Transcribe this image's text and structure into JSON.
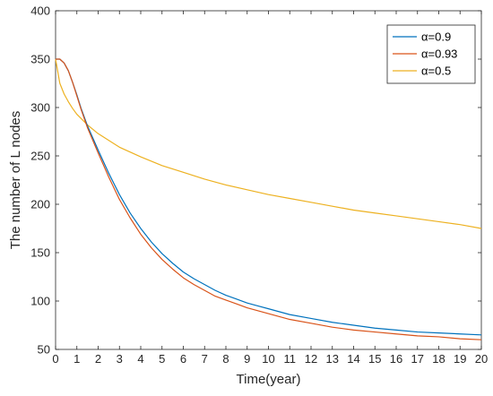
{
  "chart_data": {
    "type": "line",
    "title": "",
    "xlabel": "Time(year)",
    "ylabel": "The number of L nodes",
    "xlim": [
      0,
      20
    ],
    "ylim": [
      50,
      400
    ],
    "xticks": [
      0,
      1,
      2,
      3,
      4,
      5,
      6,
      7,
      8,
      9,
      10,
      11,
      12,
      13,
      14,
      15,
      16,
      17,
      18,
      19,
      20
    ],
    "yticks": [
      50,
      100,
      150,
      200,
      250,
      300,
      350,
      400
    ],
    "grid": false,
    "legend_position": "top-right",
    "series": [
      {
        "name": "α=0.9",
        "color": "#0072BD",
        "x": [
          0,
          0.2,
          0.4,
          0.6,
          0.8,
          1,
          1.2,
          1.5,
          2,
          2.5,
          3,
          3.5,
          4,
          4.5,
          5,
          5.5,
          6,
          6.5,
          7,
          7.5,
          8,
          8.5,
          9,
          9.5,
          10,
          11,
          12,
          13,
          14,
          15,
          16,
          17,
          18,
          19,
          20
        ],
        "values": [
          350,
          350,
          346,
          338,
          326,
          313,
          299,
          281,
          256,
          232,
          210,
          191,
          175,
          161,
          149,
          139,
          130,
          123,
          117,
          111,
          106,
          102,
          98,
          95,
          92,
          86,
          82,
          78,
          75,
          72,
          70,
          68,
          67,
          66,
          65
        ]
      },
      {
        "name": "α=0.93",
        "color": "#D95319",
        "x": [
          0,
          0.2,
          0.4,
          0.6,
          0.8,
          1,
          1.2,
          1.5,
          2,
          2.5,
          3,
          3.5,
          4,
          4.5,
          5,
          5.5,
          6,
          6.5,
          7,
          7.5,
          8,
          8.5,
          9,
          9.5,
          10,
          11,
          12,
          13,
          14,
          15,
          16,
          17,
          18,
          19,
          20
        ],
        "values": [
          350,
          350,
          346,
          338,
          326,
          312,
          298,
          279,
          253,
          228,
          205,
          186,
          169,
          155,
          143,
          133,
          124,
          117,
          111,
          105,
          101,
          97,
          93,
          90,
          87,
          81,
          77,
          73,
          70,
          68,
          66,
          64,
          63,
          61,
          60
        ]
      },
      {
        "name": "α=0.5",
        "color": "#EDB120",
        "x": [
          0,
          0.2,
          0.4,
          0.6,
          0.8,
          1,
          1.5,
          2,
          3,
          4,
          5,
          6,
          7,
          8,
          9,
          10,
          11,
          12,
          13,
          14,
          15,
          16,
          17,
          18,
          19,
          20
        ],
        "values": [
          350,
          325,
          314,
          306,
          299,
          293,
          282,
          273,
          259,
          249,
          240,
          233,
          226,
          220,
          215,
          210,
          206,
          202,
          198,
          194,
          191,
          188,
          185,
          182,
          179,
          175
        ]
      }
    ]
  }
}
